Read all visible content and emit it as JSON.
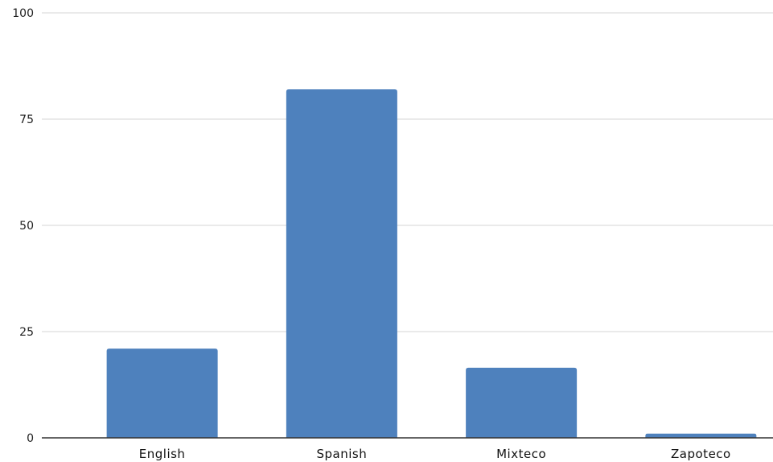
{
  "chart_data": {
    "type": "bar",
    "title": "",
    "xlabel": "",
    "ylabel": "",
    "categories": [
      "English",
      "Spanish",
      "Mixteco",
      "Zapoteco"
    ],
    "values": [
      21,
      82,
      16.5,
      1
    ],
    "ylim": [
      0,
      100
    ],
    "yticks": [
      0,
      25,
      50,
      75,
      100
    ],
    "grid": true,
    "legend": "none",
    "bar_color": "#4e81bd",
    "gridline_color": "#d4d4d4",
    "axis_color": "#333333"
  }
}
